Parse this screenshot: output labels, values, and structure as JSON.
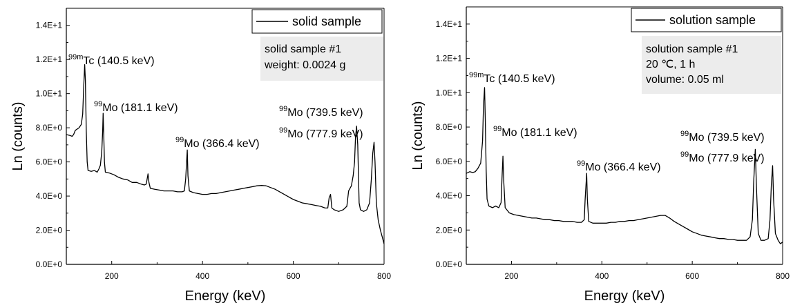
{
  "chart_data": [
    {
      "type": "line",
      "xlabel": "Energy (keV)",
      "ylabel": "Ln (counts)",
      "xlim": [
        100,
        800
      ],
      "ylim": [
        0,
        15
      ],
      "x_ticks": [
        "200",
        "400",
        "600",
        "800"
      ],
      "y_ticks": [
        "0.0E+0",
        "2.0E+0",
        "4.0E+0",
        "6.0E+0",
        "8.0E+0",
        "1.0E+1",
        "1.2E+1",
        "1.4E+1"
      ],
      "legend_position": "top-right",
      "grid": false,
      "series": [
        {
          "name": "solid sample",
          "color": "#000000",
          "points": [
            [
              100,
              7.6
            ],
            [
              108,
              7.55
            ],
            [
              113,
              7.5
            ],
            [
              116,
              7.6
            ],
            [
              120,
              7.85
            ],
            [
              128,
              8.0
            ],
            [
              133,
              8.2
            ],
            [
              136,
              8.8
            ],
            [
              138,
              10.2
            ],
            [
              140.5,
              11.7
            ],
            [
              142,
              10.8
            ],
            [
              144,
              7.8
            ],
            [
              146,
              6.0
            ],
            [
              148,
              5.5
            ],
            [
              155,
              5.45
            ],
            [
              162,
              5.5
            ],
            [
              168,
              5.4
            ],
            [
              172,
              5.6
            ],
            [
              175,
              5.8
            ],
            [
              178,
              6.6
            ],
            [
              180,
              7.8
            ],
            [
              181.1,
              8.85
            ],
            [
              182.5,
              7.6
            ],
            [
              184,
              6.0
            ],
            [
              186,
              5.4
            ],
            [
              195,
              5.35
            ],
            [
              205,
              5.25
            ],
            [
              215,
              5.1
            ],
            [
              225,
              5.0
            ],
            [
              235,
              4.95
            ],
            [
              245,
              4.8
            ],
            [
              255,
              4.8
            ],
            [
              265,
              4.7
            ],
            [
              272,
              4.65
            ],
            [
              276,
              4.7
            ],
            [
              278,
              5.0
            ],
            [
              280,
              5.3
            ],
            [
              282,
              4.8
            ],
            [
              285,
              4.45
            ],
            [
              295,
              4.4
            ],
            [
              305,
              4.35
            ],
            [
              315,
              4.3
            ],
            [
              325,
              4.3
            ],
            [
              335,
              4.3
            ],
            [
              345,
              4.25
            ],
            [
              355,
              4.25
            ],
            [
              360,
              4.3
            ],
            [
              363,
              5.0
            ],
            [
              366.4,
              6.7
            ],
            [
              368,
              5.2
            ],
            [
              371,
              4.3
            ],
            [
              380,
              4.2
            ],
            [
              390,
              4.15
            ],
            [
              400,
              4.1
            ],
            [
              410,
              4.1
            ],
            [
              420,
              4.15
            ],
            [
              430,
              4.15
            ],
            [
              440,
              4.2
            ],
            [
              450,
              4.25
            ],
            [
              460,
              4.3
            ],
            [
              470,
              4.35
            ],
            [
              480,
              4.4
            ],
            [
              490,
              4.45
            ],
            [
              500,
              4.5
            ],
            [
              510,
              4.55
            ],
            [
              520,
              4.6
            ],
            [
              530,
              4.62
            ],
            [
              540,
              4.6
            ],
            [
              550,
              4.5
            ],
            [
              560,
              4.4
            ],
            [
              570,
              4.25
            ],
            [
              580,
              4.1
            ],
            [
              590,
              3.95
            ],
            [
              600,
              3.8
            ],
            [
              610,
              3.7
            ],
            [
              620,
              3.6
            ],
            [
              630,
              3.55
            ],
            [
              640,
              3.5
            ],
            [
              650,
              3.45
            ],
            [
              660,
              3.4
            ],
            [
              670,
              3.3
            ],
            [
              676,
              3.3
            ],
            [
              679,
              3.9
            ],
            [
              682,
              4.1
            ],
            [
              685,
              3.3
            ],
            [
              690,
              3.2
            ],
            [
              700,
              3.1
            ],
            [
              710,
              3.2
            ],
            [
              718,
              3.4
            ],
            [
              722,
              4.3
            ],
            [
              728,
              4.6
            ],
            [
              732,
              5.2
            ],
            [
              735,
              6.0
            ],
            [
              737,
              7.4
            ],
            [
              739.5,
              8.1
            ],
            [
              742,
              7.0
            ],
            [
              745,
              3.6
            ],
            [
              748,
              3.2
            ],
            [
              755,
              3.1
            ],
            [
              762,
              3.2
            ],
            [
              768,
              3.6
            ],
            [
              772,
              5.0
            ],
            [
              775,
              6.5
            ],
            [
              777.9,
              7.15
            ],
            [
              780,
              6.0
            ],
            [
              783,
              3.6
            ],
            [
              787,
              2.6
            ],
            [
              792,
              2.0
            ],
            [
              796,
              1.6
            ],
            [
              800,
              1.2
            ]
          ]
        }
      ],
      "annotations": [
        {
          "x": 140.5,
          "sup": "99m",
          "label": "Tc (140.5 keV)"
        },
        {
          "x": 181.1,
          "sup": "99",
          "label": "Mo (181.1 keV)"
        },
        {
          "x": 366.4,
          "sup": "99",
          "label": "Mo (366.4 keV)"
        },
        {
          "x": 739.5,
          "sup": "99",
          "label": "Mo (739.5 keV)"
        },
        {
          "x": 777.9,
          "sup": "99",
          "label": "Mo (777.9 keV)"
        }
      ],
      "info_box": [
        "solid sample #1",
        "weight: 0.0024 g"
      ]
    },
    {
      "type": "line",
      "xlabel": "Energy (keV)",
      "ylabel": "Ln (counts)",
      "xlim": [
        100,
        800
      ],
      "ylim": [
        0,
        15
      ],
      "x_ticks": [
        "200",
        "400",
        "600",
        "800"
      ],
      "y_ticks": [
        "0.0E+0",
        "2.0E+0",
        "4.0E+0",
        "6.0E+0",
        "8.0E+0",
        "1.0E+1",
        "1.2E+1",
        "1.4E+1"
      ],
      "legend_position": "top-right",
      "grid": false,
      "series": [
        {
          "name": "solution sample",
          "color": "#000000",
          "points": [
            [
              100,
              5.3
            ],
            [
              108,
              5.4
            ],
            [
              114,
              5.35
            ],
            [
              120,
              5.4
            ],
            [
              126,
              5.6
            ],
            [
              132,
              5.9
            ],
            [
              136,
              7.2
            ],
            [
              138,
              9.2
            ],
            [
              140.5,
              10.3
            ],
            [
              142,
              8.5
            ],
            [
              144,
              5.5
            ],
            [
              146,
              3.8
            ],
            [
              150,
              3.4
            ],
            [
              158,
              3.3
            ],
            [
              165,
              3.4
            ],
            [
              172,
              3.3
            ],
            [
              177,
              3.6
            ],
            [
              179,
              5.0
            ],
            [
              181.1,
              6.3
            ],
            [
              183,
              4.8
            ],
            [
              186,
              3.3
            ],
            [
              195,
              3.0
            ],
            [
              205,
              2.9
            ],
            [
              215,
              2.85
            ],
            [
              225,
              2.8
            ],
            [
              235,
              2.75
            ],
            [
              245,
              2.7
            ],
            [
              255,
              2.7
            ],
            [
              265,
              2.65
            ],
            [
              275,
              2.6
            ],
            [
              285,
              2.6
            ],
            [
              295,
              2.55
            ],
            [
              305,
              2.55
            ],
            [
              315,
              2.5
            ],
            [
              325,
              2.5
            ],
            [
              335,
              2.5
            ],
            [
              345,
              2.45
            ],
            [
              355,
              2.45
            ],
            [
              361,
              2.6
            ],
            [
              363,
              3.8
            ],
            [
              366.4,
              5.3
            ],
            [
              368,
              3.8
            ],
            [
              371,
              2.5
            ],
            [
              380,
              2.4
            ],
            [
              390,
              2.4
            ],
            [
              400,
              2.4
            ],
            [
              410,
              2.4
            ],
            [
              420,
              2.45
            ],
            [
              430,
              2.45
            ],
            [
              440,
              2.5
            ],
            [
              450,
              2.5
            ],
            [
              460,
              2.55
            ],
            [
              470,
              2.55
            ],
            [
              480,
              2.6
            ],
            [
              490,
              2.65
            ],
            [
              500,
              2.7
            ],
            [
              510,
              2.75
            ],
            [
              520,
              2.8
            ],
            [
              530,
              2.85
            ],
            [
              540,
              2.85
            ],
            [
              550,
              2.7
            ],
            [
              560,
              2.5
            ],
            [
              570,
              2.35
            ],
            [
              580,
              2.2
            ],
            [
              590,
              2.05
            ],
            [
              600,
              1.9
            ],
            [
              610,
              1.8
            ],
            [
              620,
              1.7
            ],
            [
              630,
              1.65
            ],
            [
              640,
              1.6
            ],
            [
              650,
              1.55
            ],
            [
              660,
              1.5
            ],
            [
              670,
              1.5
            ],
            [
              680,
              1.45
            ],
            [
              690,
              1.45
            ],
            [
              700,
              1.4
            ],
            [
              710,
              1.4
            ],
            [
              720,
              1.4
            ],
            [
              728,
              1.6
            ],
            [
              733,
              2.6
            ],
            [
              736,
              4.8
            ],
            [
              739.5,
              6.7
            ],
            [
              742,
              4.5
            ],
            [
              746,
              1.8
            ],
            [
              752,
              1.4
            ],
            [
              760,
              1.4
            ],
            [
              768,
              1.5
            ],
            [
              772,
              2.6
            ],
            [
              775,
              4.6
            ],
            [
              777.9,
              5.75
            ],
            [
              780,
              3.8
            ],
            [
              784,
              1.8
            ],
            [
              790,
              1.4
            ],
            [
              795,
              1.2
            ],
            [
              800,
              1.3
            ]
          ]
        }
      ],
      "annotations": [
        {
          "x": 140.5,
          "sup": "99m",
          "label": "Tc (140.5 keV)"
        },
        {
          "x": 181.1,
          "sup": "99",
          "label": "Mo (181.1 keV)"
        },
        {
          "x": 366.4,
          "sup": "99",
          "label": "Mo (366.4 keV)"
        },
        {
          "x": 739.5,
          "sup": "99",
          "label": "Mo (739.5 keV)"
        },
        {
          "x": 777.9,
          "sup": "99",
          "label": "Mo (777.9 keV)"
        }
      ],
      "info_box": [
        "solution sample #1",
        "20 ℃, 1 h",
        "volume: 0.05 ml"
      ]
    }
  ]
}
